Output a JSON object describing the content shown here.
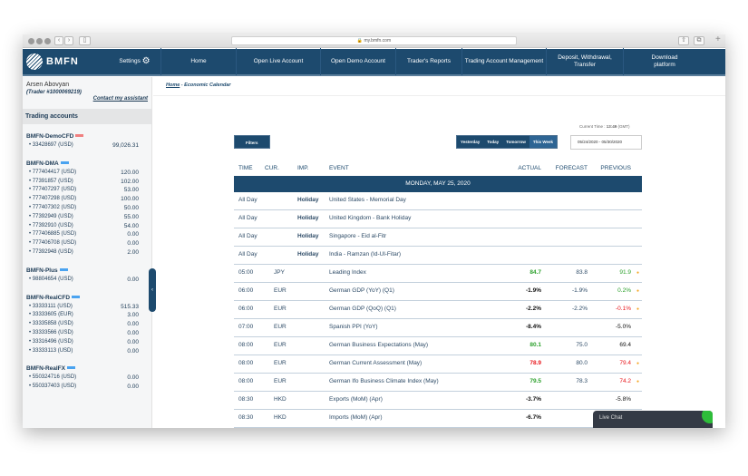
{
  "browser": {
    "url": "my.bmfn.com"
  },
  "nav": {
    "logo": "BMFN",
    "items": [
      "Settings",
      "Home",
      "Open Live Account",
      "Open Demo Account",
      "Trader's Reports",
      "Trading Account Management",
      "Deposit, Withdrawal, Transfer",
      "Download platform"
    ]
  },
  "user": {
    "name": "Arsen Abovyan",
    "trader": "(Trader #1000069219)",
    "contact": "Contact my assistant"
  },
  "sidebar": {
    "title": "Trading accounts",
    "groups": [
      {
        "name": "BMFN-DemoCFD",
        "badge_color": "#f08080",
        "accounts": [
          [
            "33428697 (USD)",
            "99,026.31"
          ]
        ]
      },
      {
        "name": "BMFN-DMA",
        "badge_color": "#4aa3f0",
        "accounts": [
          [
            "777404417 (USD)",
            "120.00"
          ],
          [
            "77391857 (USD)",
            "102.00"
          ],
          [
            "777407297 (USD)",
            "53.00"
          ],
          [
            "777407298 (USD)",
            "100.00"
          ],
          [
            "777407302 (USD)",
            "50.00"
          ],
          [
            "77392949 (USD)",
            "55.00"
          ],
          [
            "77392910 (USD)",
            "54.00"
          ],
          [
            "777406885 (USD)",
            "0.00"
          ],
          [
            "777406708 (USD)",
            "0.00"
          ],
          [
            "77392948 (USD)",
            "2.00"
          ]
        ]
      },
      {
        "name": "BMFN-Plus",
        "badge_color": "#4aa3f0",
        "accounts": [
          [
            "98804654 (USD)",
            "0.00"
          ]
        ]
      },
      {
        "name": "BMFN-RealCFD",
        "badge_color": "#4aa3f0",
        "accounts": [
          [
            "33333111 (USD)",
            "515.33"
          ],
          [
            "33333605 (EUR)",
            "3.00"
          ],
          [
            "33335858 (USD)",
            "0.00"
          ],
          [
            "33333566 (USD)",
            "0.00"
          ],
          [
            "33316496 (USD)",
            "0.00"
          ],
          [
            "33333113 (USD)",
            "0.00"
          ]
        ]
      },
      {
        "name": "BMFN-RealFX",
        "badge_color": "#4aa3f0",
        "accounts": [
          [
            "550324716 (USD)",
            "0.00"
          ],
          [
            "550337403 (USD)",
            "0.00"
          ]
        ]
      }
    ]
  },
  "breadcrumb": {
    "home": "Home",
    "current": " - Economic Calendar"
  },
  "current_time": {
    "label": "Current Time : ",
    "time": "13:49",
    "zone": " (GMT)"
  },
  "filters": "Filters",
  "periods": [
    {
      "label": "Yesterday",
      "active": false
    },
    {
      "label": "Today",
      "active": false
    },
    {
      "label": "Tomorrow",
      "active": false
    },
    {
      "label": "This Week",
      "active": true
    }
  ],
  "date_range": "05/24/2020 - 05/30/2020",
  "columns": [
    "TIME",
    "CUR.",
    "IMP.",
    "EVENT",
    "ACTUAL",
    "FORECAST",
    "PREVIOUS"
  ],
  "date_header": "MONDAY, MAY 25, 2020",
  "colors": {
    "green": "#2ca02c",
    "red": "#e8161b",
    "black": "#111111"
  },
  "rows": [
    {
      "time": "All Day",
      "cur": "",
      "imp": "Holiday",
      "event": "United States - Memorial Day",
      "actual": "",
      "actual_color": "black",
      "forecast": "",
      "previous": "",
      "previous_color": "black",
      "star": false
    },
    {
      "time": "All Day",
      "cur": "",
      "imp": "Holiday",
      "event": "United Kingdom - Bank Holiday",
      "actual": "",
      "actual_color": "black",
      "forecast": "",
      "previous": "",
      "previous_color": "black",
      "star": false
    },
    {
      "time": "All Day",
      "cur": "",
      "imp": "Holiday",
      "event": "Singapore - Eid al-Fitr",
      "actual": "",
      "actual_color": "black",
      "forecast": "",
      "previous": "",
      "previous_color": "black",
      "star": false
    },
    {
      "time": "All Day",
      "cur": "",
      "imp": "Holiday",
      "event": "India - Ramzan (Id-Ul-Fitar)",
      "actual": "",
      "actual_color": "black",
      "forecast": "",
      "previous": "",
      "previous_color": "black",
      "star": false
    },
    {
      "time": "05:00",
      "cur": "JPY",
      "imp": "",
      "event": "Leading Index",
      "actual": "84.7",
      "actual_color": "green",
      "forecast": "83.8",
      "previous": "91.9",
      "previous_color": "green",
      "star": true
    },
    {
      "time": "06:00",
      "cur": "EUR",
      "imp": "",
      "event": "German GDP (YoY) (Q1)",
      "actual": "-1.9%",
      "actual_color": "black",
      "forecast": "-1.9%",
      "previous": "0.2%",
      "previous_color": "green",
      "star": true
    },
    {
      "time": "06:00",
      "cur": "EUR",
      "imp": "",
      "event": "German GDP (QoQ) (Q1)",
      "actual": "-2.2%",
      "actual_color": "black",
      "forecast": "-2.2%",
      "previous": "-0.1%",
      "previous_color": "red",
      "star": true
    },
    {
      "time": "07:00",
      "cur": "EUR",
      "imp": "",
      "event": "Spanish PPI (YoY)",
      "actual": "-8.4%",
      "actual_color": "black",
      "forecast": "",
      "previous": "-5.0%",
      "previous_color": "black",
      "star": false
    },
    {
      "time": "08:00",
      "cur": "EUR",
      "imp": "",
      "event": "German Business Expectations (May)",
      "actual": "80.1",
      "actual_color": "green",
      "forecast": "75.0",
      "previous": "69.4",
      "previous_color": "black",
      "star": false
    },
    {
      "time": "08:00",
      "cur": "EUR",
      "imp": "",
      "event": "German Current Assessment (May)",
      "actual": "78.9",
      "actual_color": "red",
      "forecast": "80.0",
      "previous": "79.4",
      "previous_color": "red",
      "star": true
    },
    {
      "time": "08:00",
      "cur": "EUR",
      "imp": "",
      "event": "German Ifo Business Climate Index (May)",
      "actual": "79.5",
      "actual_color": "green",
      "forecast": "78.3",
      "previous": "74.2",
      "previous_color": "red",
      "star": true
    },
    {
      "time": "08:30",
      "cur": "HKD",
      "imp": "",
      "event": "Exports (MoM) (Apr)",
      "actual": "-3.7%",
      "actual_color": "black",
      "forecast": "",
      "previous": "-5.8%",
      "previous_color": "black",
      "star": false
    },
    {
      "time": "08:30",
      "cur": "HKD",
      "imp": "",
      "event": "Imports (MoM) (Apr)",
      "actual": "-6.7%",
      "actual_color": "black",
      "forecast": "",
      "previous": "",
      "previous_color": "black",
      "star": false
    }
  ],
  "live_chat": "Live Chat"
}
